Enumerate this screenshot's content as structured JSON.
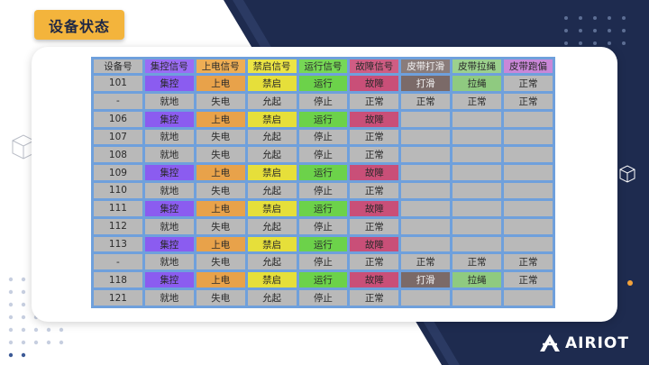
{
  "slide": {
    "title": "设备状态",
    "logo_text": "AIRIOT",
    "colors": {
      "navy": "#1e2b4f",
      "accent_orange": "#f3b43c",
      "table_border": "#6fa0dc",
      "cell_gray": "#b9b9b9"
    }
  },
  "table": {
    "headers": [
      {
        "label": "设备号",
        "cls": ""
      },
      {
        "label": "集控信号",
        "cls": "h-jk"
      },
      {
        "label": "上电信号",
        "cls": "h-sd"
      },
      {
        "label": "禁启信号",
        "cls": "h-jq"
      },
      {
        "label": "运行信号",
        "cls": "h-yx"
      },
      {
        "label": "故障信号",
        "cls": "h-gz"
      },
      {
        "label": "皮带打滑",
        "cls": "h-dh"
      },
      {
        "label": "皮带拉绳",
        "cls": "h-ls"
      },
      {
        "label": "皮带跑偏",
        "cls": "h-pp"
      }
    ],
    "rows": [
      {
        "cells": [
          {
            "v": "101",
            "c": ""
          },
          {
            "v": "集控",
            "c": "c-jk"
          },
          {
            "v": "上电",
            "c": "c-sd"
          },
          {
            "v": "禁启",
            "c": "c-jq"
          },
          {
            "v": "运行",
            "c": "c-yx"
          },
          {
            "v": "故障",
            "c": "c-gz"
          },
          {
            "v": "打滑",
            "c": "c-dh"
          },
          {
            "v": "拉绳",
            "c": "c-ls"
          },
          {
            "v": "正常",
            "c": ""
          }
        ]
      },
      {
        "cells": [
          {
            "v": "-",
            "c": ""
          },
          {
            "v": "就地",
            "c": ""
          },
          {
            "v": "失电",
            "c": ""
          },
          {
            "v": "允起",
            "c": ""
          },
          {
            "v": "停止",
            "c": ""
          },
          {
            "v": "正常",
            "c": ""
          },
          {
            "v": "正常",
            "c": ""
          },
          {
            "v": "正常",
            "c": ""
          },
          {
            "v": "正常",
            "c": ""
          }
        ]
      },
      {
        "cells": [
          {
            "v": "106",
            "c": ""
          },
          {
            "v": "集控",
            "c": "c-jk"
          },
          {
            "v": "上电",
            "c": "c-sd"
          },
          {
            "v": "禁启",
            "c": "c-jq"
          },
          {
            "v": "运行",
            "c": "c-yx"
          },
          {
            "v": "故障",
            "c": "c-gz"
          },
          {
            "v": "",
            "c": ""
          },
          {
            "v": "",
            "c": ""
          },
          {
            "v": "",
            "c": ""
          }
        ]
      },
      {
        "cells": [
          {
            "v": "107",
            "c": ""
          },
          {
            "v": "就地",
            "c": ""
          },
          {
            "v": "失电",
            "c": ""
          },
          {
            "v": "允起",
            "c": ""
          },
          {
            "v": "停止",
            "c": ""
          },
          {
            "v": "正常",
            "c": ""
          },
          {
            "v": "",
            "c": ""
          },
          {
            "v": "",
            "c": ""
          },
          {
            "v": "",
            "c": ""
          }
        ]
      },
      {
        "cells": [
          {
            "v": "108",
            "c": ""
          },
          {
            "v": "就地",
            "c": ""
          },
          {
            "v": "失电",
            "c": ""
          },
          {
            "v": "允起",
            "c": ""
          },
          {
            "v": "停止",
            "c": ""
          },
          {
            "v": "正常",
            "c": ""
          },
          {
            "v": "",
            "c": ""
          },
          {
            "v": "",
            "c": ""
          },
          {
            "v": "",
            "c": ""
          }
        ]
      },
      {
        "cells": [
          {
            "v": "109",
            "c": ""
          },
          {
            "v": "集控",
            "c": "c-jk"
          },
          {
            "v": "上电",
            "c": "c-sd"
          },
          {
            "v": "禁启",
            "c": "c-jq"
          },
          {
            "v": "运行",
            "c": "c-yx"
          },
          {
            "v": "故障",
            "c": "c-gz"
          },
          {
            "v": "",
            "c": ""
          },
          {
            "v": "",
            "c": ""
          },
          {
            "v": "",
            "c": ""
          }
        ]
      },
      {
        "cells": [
          {
            "v": "110",
            "c": ""
          },
          {
            "v": "就地",
            "c": ""
          },
          {
            "v": "失电",
            "c": ""
          },
          {
            "v": "允起",
            "c": ""
          },
          {
            "v": "停止",
            "c": ""
          },
          {
            "v": "正常",
            "c": ""
          },
          {
            "v": "",
            "c": ""
          },
          {
            "v": "",
            "c": ""
          },
          {
            "v": "",
            "c": ""
          }
        ]
      },
      {
        "cells": [
          {
            "v": "111",
            "c": ""
          },
          {
            "v": "集控",
            "c": "c-jk"
          },
          {
            "v": "上电",
            "c": "c-sd"
          },
          {
            "v": "禁启",
            "c": "c-jq"
          },
          {
            "v": "运行",
            "c": "c-yx"
          },
          {
            "v": "故障",
            "c": "c-gz"
          },
          {
            "v": "",
            "c": ""
          },
          {
            "v": "",
            "c": ""
          },
          {
            "v": "",
            "c": ""
          }
        ]
      },
      {
        "cells": [
          {
            "v": "112",
            "c": ""
          },
          {
            "v": "就地",
            "c": ""
          },
          {
            "v": "失电",
            "c": ""
          },
          {
            "v": "允起",
            "c": ""
          },
          {
            "v": "停止",
            "c": ""
          },
          {
            "v": "正常",
            "c": ""
          },
          {
            "v": "",
            "c": ""
          },
          {
            "v": "",
            "c": ""
          },
          {
            "v": "",
            "c": ""
          }
        ]
      },
      {
        "cells": [
          {
            "v": "113",
            "c": ""
          },
          {
            "v": "集控",
            "c": "c-jk"
          },
          {
            "v": "上电",
            "c": "c-sd"
          },
          {
            "v": "禁启",
            "c": "c-jq"
          },
          {
            "v": "运行",
            "c": "c-yx"
          },
          {
            "v": "故障",
            "c": "c-gz"
          },
          {
            "v": "",
            "c": ""
          },
          {
            "v": "",
            "c": ""
          },
          {
            "v": "",
            "c": ""
          }
        ]
      },
      {
        "cells": [
          {
            "v": "-",
            "c": ""
          },
          {
            "v": "就地",
            "c": ""
          },
          {
            "v": "失电",
            "c": ""
          },
          {
            "v": "允起",
            "c": ""
          },
          {
            "v": "停止",
            "c": ""
          },
          {
            "v": "正常",
            "c": ""
          },
          {
            "v": "正常",
            "c": ""
          },
          {
            "v": "正常",
            "c": ""
          },
          {
            "v": "正常",
            "c": ""
          }
        ]
      },
      {
        "cells": [
          {
            "v": "118",
            "c": ""
          },
          {
            "v": "集控",
            "c": "c-jk"
          },
          {
            "v": "上电",
            "c": "c-sd"
          },
          {
            "v": "禁启",
            "c": "c-jq"
          },
          {
            "v": "运行",
            "c": "c-yx"
          },
          {
            "v": "故障",
            "c": "c-gz"
          },
          {
            "v": "打滑",
            "c": "c-dh"
          },
          {
            "v": "拉绳",
            "c": "c-ls"
          },
          {
            "v": "正常",
            "c": ""
          }
        ]
      },
      {
        "cells": [
          {
            "v": "121",
            "c": ""
          },
          {
            "v": "就地",
            "c": ""
          },
          {
            "v": "失电",
            "c": ""
          },
          {
            "v": "允起",
            "c": ""
          },
          {
            "v": "停止",
            "c": ""
          },
          {
            "v": "正常",
            "c": ""
          },
          {
            "v": "",
            "c": ""
          },
          {
            "v": "",
            "c": ""
          },
          {
            "v": "",
            "c": ""
          }
        ]
      }
    ]
  }
}
